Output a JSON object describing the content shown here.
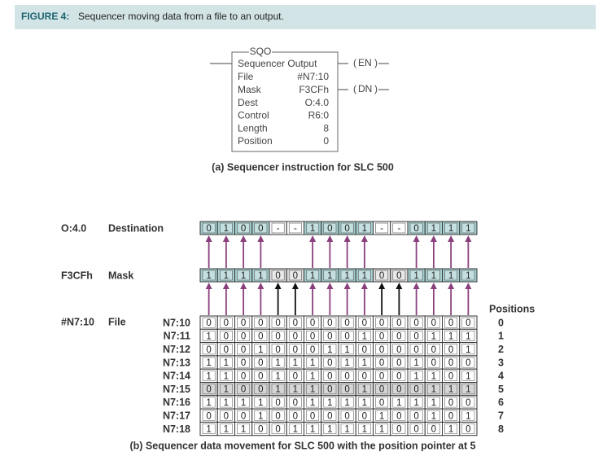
{
  "header": {
    "label": "FIGURE 4:",
    "title": "Sequencer moving data from a file to an output."
  },
  "instruction": {
    "name": "SQO",
    "title": "Sequencer Output",
    "fields": [
      [
        "File",
        "#N7:10"
      ],
      [
        "Mask",
        "F3CFh"
      ],
      [
        "Dest",
        "O:4.0"
      ],
      [
        "Control",
        "R6:0"
      ],
      [
        "Length",
        "8"
      ],
      [
        "Position",
        "0"
      ]
    ],
    "outputs": [
      "EN",
      "DN"
    ],
    "caption": "(a) Sequencer instruction for SLC 500"
  },
  "movement": {
    "destination": {
      "address": "O:4.0",
      "label": "Destination",
      "bits": [
        "0",
        "1",
        "0",
        "0",
        "-",
        "-",
        "1",
        "0",
        "0",
        "1",
        "-",
        "-",
        "0",
        "1",
        "1",
        "1"
      ]
    },
    "mask": {
      "address": "F3CFh",
      "label": "Mask",
      "bits": [
        "1",
        "1",
        "1",
        "1",
        "0",
        "0",
        "1",
        "1",
        "1",
        "1",
        "0",
        "0",
        "1",
        "1",
        "1",
        "1"
      ]
    },
    "file": {
      "address": "#N7:10",
      "label": "File",
      "positions_label": "Positions",
      "current_row": 5,
      "rows": [
        {
          "name": "N7:10",
          "position": "0",
          "bits": [
            "0",
            "0",
            "0",
            "0",
            "0",
            "0",
            "0",
            "0",
            "0",
            "0",
            "0",
            "0",
            "0",
            "0",
            "0",
            "0"
          ]
        },
        {
          "name": "N7:11",
          "position": "1",
          "bits": [
            "1",
            "0",
            "0",
            "0",
            "0",
            "0",
            "0",
            "0",
            "0",
            "1",
            "0",
            "0",
            "0",
            "1",
            "1",
            "1"
          ]
        },
        {
          "name": "N7:12",
          "position": "2",
          "bits": [
            "0",
            "0",
            "0",
            "1",
            "0",
            "0",
            "0",
            "1",
            "1",
            "0",
            "0",
            "0",
            "0",
            "0",
            "0",
            "1"
          ]
        },
        {
          "name": "N7:13",
          "position": "3",
          "bits": [
            "1",
            "1",
            "0",
            "0",
            "1",
            "1",
            "1",
            "0",
            "1",
            "1",
            "0",
            "0",
            "1",
            "0",
            "0",
            "0"
          ]
        },
        {
          "name": "N7:14",
          "position": "4",
          "bits": [
            "1",
            "1",
            "0",
            "0",
            "1",
            "0",
            "1",
            "0",
            "0",
            "0",
            "0",
            "0",
            "1",
            "1",
            "0",
            "1"
          ]
        },
        {
          "name": "N7:15",
          "position": "5",
          "bits": [
            "0",
            "1",
            "0",
            "0",
            "1",
            "1",
            "1",
            "0",
            "0",
            "1",
            "0",
            "0",
            "0",
            "1",
            "1",
            "1"
          ]
        },
        {
          "name": "N7:16",
          "position": "6",
          "bits": [
            "1",
            "1",
            "1",
            "1",
            "0",
            "0",
            "1",
            "1",
            "1",
            "1",
            "0",
            "1",
            "1",
            "1",
            "0",
            "0"
          ]
        },
        {
          "name": "N7:17",
          "position": "7",
          "bits": [
            "0",
            "0",
            "0",
            "1",
            "0",
            "0",
            "0",
            "0",
            "0",
            "0",
            "1",
            "0",
            "0",
            "1",
            "0",
            "1"
          ]
        },
        {
          "name": "N7:18",
          "position": "8",
          "bits": [
            "1",
            "1",
            "1",
            "0",
            "0",
            "1",
            "1",
            "1",
            "1",
            "1",
            "1",
            "0",
            "0",
            "0",
            "1",
            "0"
          ]
        }
      ]
    },
    "caption": "(b) Sequencer data movement for SLC 500 with the position pointer at 5"
  }
}
